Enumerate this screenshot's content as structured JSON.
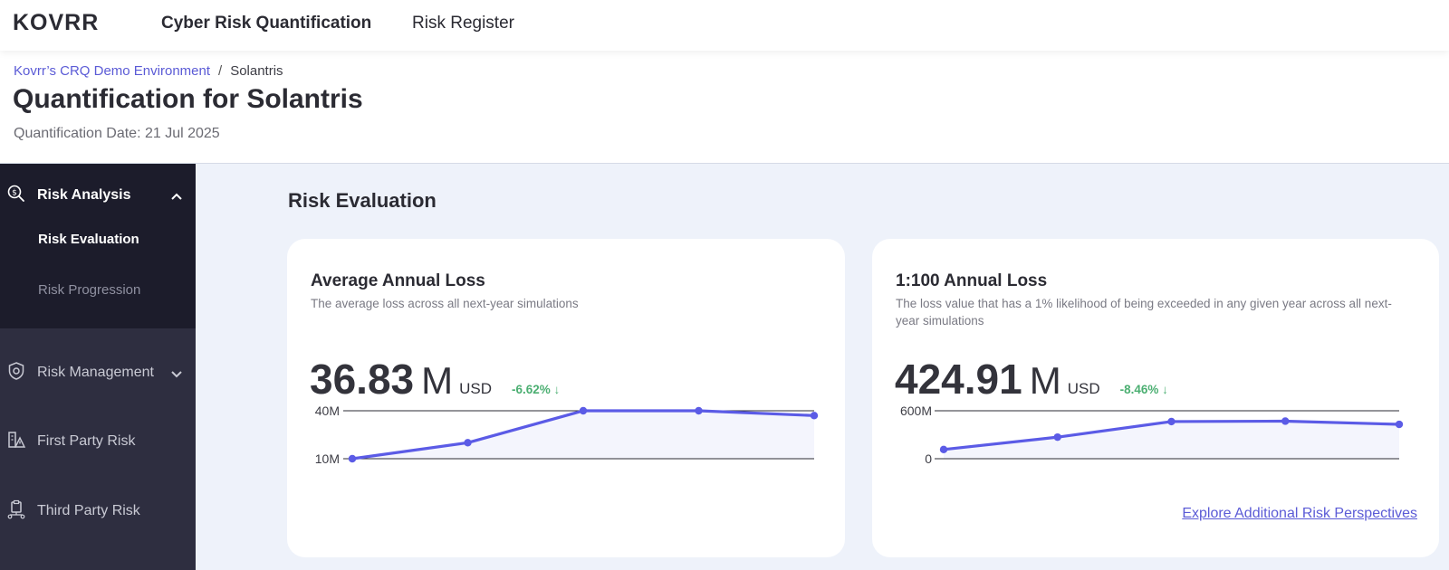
{
  "nav": {
    "logo": "KOVRR",
    "links": [
      {
        "label": "Cyber Risk Quantification",
        "active": true
      },
      {
        "label": "Risk Register",
        "active": false
      }
    ]
  },
  "header": {
    "breadcrumb": [
      "Kovrr’s CRQ Demo Environment",
      "/",
      "Solantris"
    ],
    "title": "Quantification for Solantris",
    "date": "Quantification Date: 21 Jul 2025"
  },
  "sidebar": {
    "groups": [
      {
        "label": "Risk Analysis",
        "icon": "search-dollar-icon",
        "expanded": true,
        "items": [
          {
            "label": "Risk Evaluation",
            "active": true
          },
          {
            "label": "Risk Progression",
            "active": false
          }
        ]
      },
      {
        "label": "Risk Management",
        "icon": "shield-gear-icon",
        "expanded": false
      },
      {
        "label": "First Party Risk",
        "icon": "building-warning-icon"
      },
      {
        "label": "Third Party Risk",
        "icon": "network-clipboard-icon"
      }
    ]
  },
  "main": {
    "section_title": "Risk Evaluation",
    "cards": [
      {
        "title": "Average Annual Loss",
        "description": "The average loss across all next-year simulations",
        "value": "36.83",
        "unit": "M",
        "currency": "USD",
        "change": "-6.62% ↓"
      },
      {
        "title": "1:100 Annual Loss",
        "description": "The loss value that has a 1% likelihood of being exceeded in any given year across all next-year simulations",
        "value": "424.91",
        "unit": "M",
        "currency": "USD",
        "change": "-8.46% ↓",
        "link": "Explore Additional Risk Perspectives"
      }
    ]
  },
  "colors": {
    "accent": "#5b5bd6",
    "positive": "#4caf72",
    "sidebar": "#2e2e40"
  },
  "chart_data": [
    {
      "type": "line",
      "x": [
        1,
        2,
        3,
        4,
        5
      ],
      "series": [
        {
          "values": [
            10.0,
            20.0,
            40.0,
            40.0,
            37.0
          ]
        }
      ],
      "tick_labels": [
        "40M",
        "10M"
      ],
      "ylim": [
        10,
        40
      ],
      "grid": true
    },
    {
      "type": "line",
      "x": [
        1,
        2,
        3,
        4,
        5
      ],
      "series": [
        {
          "values": [
            115,
            270,
            465,
            470,
            430
          ]
        }
      ],
      "tick_labels": [
        "600M",
        "0"
      ],
      "ylim": [
        0,
        600
      ],
      "grid": true
    }
  ]
}
